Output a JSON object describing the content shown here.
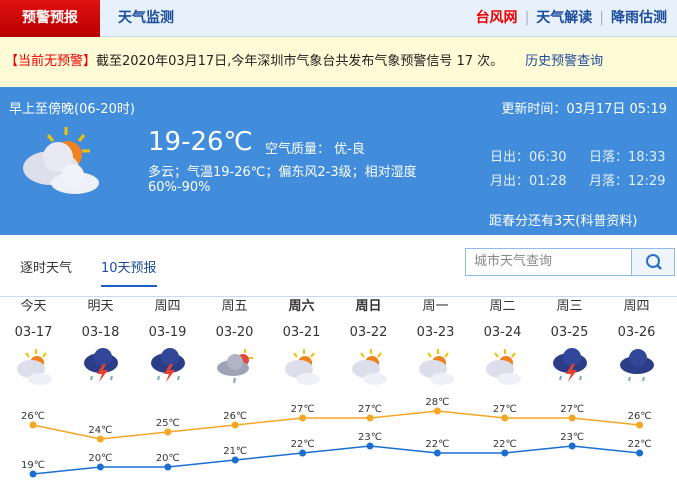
{
  "nav": {
    "active": "预警预报",
    "monitor": "天气监测",
    "links": [
      "台风网",
      "天气解读",
      "降雨估测"
    ]
  },
  "warning": {
    "status": "【当前无预警】",
    "text": "截至2020年03月17日,今年深圳市气象台共发布气象预警信号 17 次。",
    "history": "历史预警查询"
  },
  "today": {
    "period": "早上至傍晚(06-20时)",
    "update": "更新时间：03月17日 05:19",
    "temp": "19-26℃",
    "aqi": "空气质量： 优-良",
    "desc": "多云；气温19-26℃；偏东风2-3级；相对湿度",
    "humidity": "60%-90%",
    "sunrise": "日出：06:30",
    "sunset": "日落：18:33",
    "moonrise": "月出：01:28",
    "moonset": "月落：12:29",
    "solar_term": "距春分还有3天(科普资料)",
    "icon": "partly-cloudy-icon"
  },
  "tabs": [
    "逐时天气",
    "10天预报"
  ],
  "active_tab": "10天预报",
  "search": {
    "placeholder": "城市天气查询",
    "icon": "search-icon"
  },
  "colors": {
    "high": "#f5a623",
    "low": "#1a6fd0",
    "panel": "#418ddb",
    "alert": "#e00000"
  },
  "forecast": [
    {
      "day": "今天",
      "date": "03-17",
      "icon": "partly-cloudy",
      "high": "26℃",
      "low": "19℃"
    },
    {
      "day": "明天",
      "date": "03-18",
      "icon": "thunderstorm",
      "high": "24℃",
      "low": "20℃"
    },
    {
      "day": "周四",
      "date": "03-19",
      "icon": "thunderstorm",
      "high": "25℃",
      "low": "20℃"
    },
    {
      "day": "周五",
      "date": "03-20",
      "icon": "light-rain",
      "high": "26℃",
      "low": "21℃"
    },
    {
      "day": "周六",
      "date": "03-21",
      "icon": "partly-cloudy",
      "high": "27℃",
      "low": "22℃"
    },
    {
      "day": "周日",
      "date": "03-22",
      "icon": "partly-cloudy",
      "high": "27℃",
      "low": "23℃"
    },
    {
      "day": "周一",
      "date": "03-23",
      "icon": "partly-cloudy",
      "high": "28℃",
      "low": "22℃"
    },
    {
      "day": "周二",
      "date": "03-24",
      "icon": "partly-cloudy",
      "high": "27℃",
      "low": "22℃"
    },
    {
      "day": "周三",
      "date": "03-25",
      "icon": "thunderstorm",
      "high": "27℃",
      "low": "23℃"
    },
    {
      "day": "周四",
      "date": "03-26",
      "icon": "rain",
      "high": "26℃",
      "low": "22℃"
    }
  ],
  "chart_data": {
    "type": "line",
    "categories": [
      "03-17",
      "03-18",
      "03-19",
      "03-20",
      "03-21",
      "03-22",
      "03-23",
      "03-24",
      "03-25",
      "03-26"
    ],
    "series": [
      {
        "values": [
          26,
          24,
          25,
          26,
          27,
          27,
          28,
          27,
          27,
          26
        ]
      },
      {
        "values": [
          19,
          20,
          20,
          21,
          22,
          23,
          22,
          22,
          23,
          22
        ]
      }
    ],
    "unit": "℃"
  }
}
